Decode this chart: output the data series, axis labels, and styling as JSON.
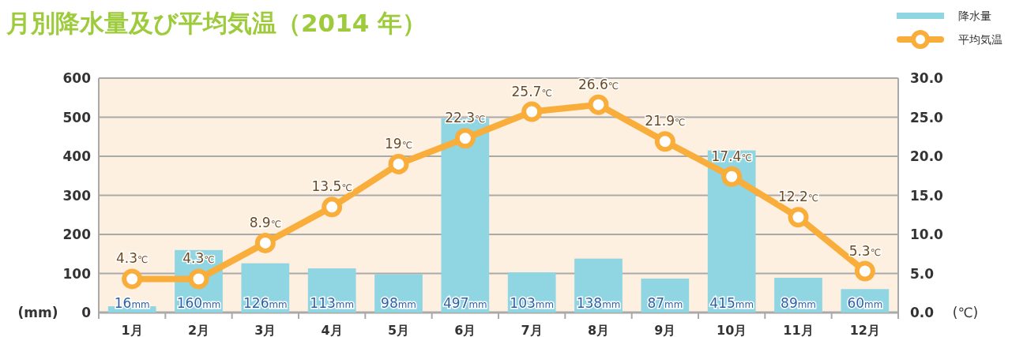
{
  "chart_data": {
    "type": "bar",
    "title": "月別降水量及び平均気温（2014 年）",
    "categories": [
      "1月",
      "2月",
      "3月",
      "4月",
      "5月",
      "6月",
      "7月",
      "8月",
      "9月",
      "10月",
      "11月",
      "12月"
    ],
    "series": [
      {
        "name": "降水量",
        "color": "#8fd5e2",
        "values": [
          16,
          160,
          126,
          113,
          98,
          497,
          103,
          138,
          87,
          415,
          89,
          60
        ],
        "value_labels": [
          "16mm",
          "160mm",
          "126mm",
          "113mm",
          "98mm",
          "497mm",
          "103mm",
          "138mm",
          "87mm",
          "415mm",
          "89mm",
          "60mm"
        ]
      },
      {
        "name": "平均気温",
        "type": "line",
        "axis": "y2",
        "color": "#f9ad3a",
        "marker": "circle",
        "line_style": "solid",
        "values": [
          4.3,
          4.3,
          8.9,
          13.5,
          19,
          22.3,
          25.7,
          26.6,
          21.9,
          17.4,
          12.2,
          5.3
        ],
        "value_labels": [
          "4.3℃",
          "4.3℃",
          "8.9℃",
          "13.5℃",
          "19℃",
          "22.3℃",
          "25.7℃",
          "26.6℃",
          "21.9℃",
          "17.4℃",
          "12.2℃",
          "5.3℃"
        ]
      }
    ],
    "ylabel": "(mm)",
    "y2label": "(℃)",
    "ylim": [
      0,
      600
    ],
    "yticks": [
      0,
      100,
      200,
      300,
      400,
      500,
      600
    ],
    "y2lim": [
      0,
      30
    ],
    "y2ticks": [
      {
        "value": 0,
        "label": "0.0"
      },
      {
        "value": 5,
        "label": "5.0"
      },
      {
        "value": 10,
        "label": "10.0"
      },
      {
        "value": 15,
        "label": "15.0"
      },
      {
        "value": 20,
        "label": "20.0"
      },
      {
        "value": 25,
        "label": "25.0"
      },
      {
        "value": 30,
        "label": "30.0"
      }
    ],
    "grid": "y",
    "legend": "top right"
  }
}
